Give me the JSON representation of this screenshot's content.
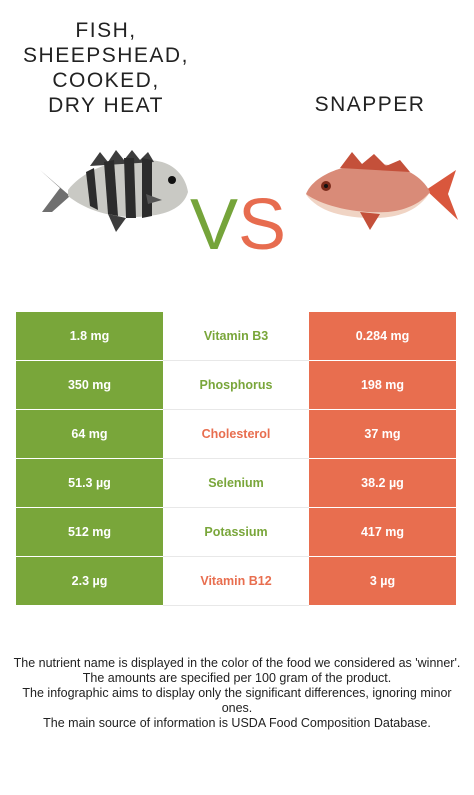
{
  "left_food": {
    "title": "FISH,\nSHEEPSHEAD,\nCOOKED,\nDRY HEAT",
    "color": "#79a63a"
  },
  "right_food": {
    "title": "SNAPPER",
    "color": "#e86e4f"
  },
  "vs": {
    "v": "V",
    "s": "S"
  },
  "rows": [
    {
      "left": "1.8 mg",
      "nutrient": "Vitamin B3",
      "right": "0.284 mg",
      "winner": "left"
    },
    {
      "left": "350 mg",
      "nutrient": "Phosphorus",
      "right": "198 mg",
      "winner": "left"
    },
    {
      "left": "64 mg",
      "nutrient": "Cholesterol",
      "right": "37 mg",
      "winner": "right"
    },
    {
      "left": "51.3 µg",
      "nutrient": "Selenium",
      "right": "38.2 µg",
      "winner": "left"
    },
    {
      "left": "512 mg",
      "nutrient": "Potassium",
      "right": "417 mg",
      "winner": "left"
    },
    {
      "left": "2.3 µg",
      "nutrient": "Vitamin B12",
      "right": "3 µg",
      "winner": "right"
    }
  ],
  "notes": [
    "The nutrient name is displayed in the color of the food we considered as 'winner'.",
    "The amounts are specified per 100 gram of the product.",
    "The infographic aims to display only the significant differences, ignoring minor ones.",
    "The main source of information is USDA Food Composition Database."
  ]
}
